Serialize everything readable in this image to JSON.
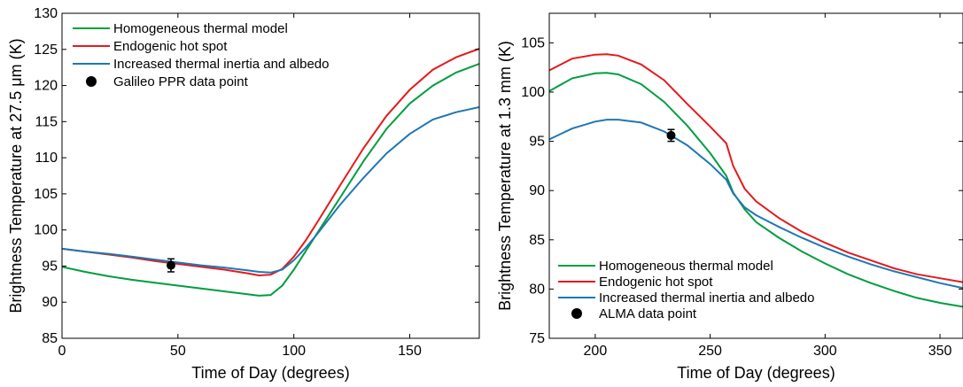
{
  "chart_data": [
    {
      "type": "line",
      "title": "",
      "xlabel": "Time of Day (degrees)",
      "ylabel": "Brightness Temperature at 27.5 μm (K)",
      "xlim": [
        0,
        180
      ],
      "ylim": [
        85,
        130
      ],
      "xticks": [
        0,
        50,
        100,
        150
      ],
      "yticks": [
        85,
        90,
        95,
        100,
        105,
        110,
        115,
        120,
        125,
        130
      ],
      "grid": false,
      "legend_position": "top-left",
      "series": [
        {
          "name": "Homogeneous thermal model",
          "color": "#009E3F",
          "x": [
            0,
            10,
            20,
            30,
            40,
            50,
            60,
            70,
            80,
            85,
            90,
            95,
            100,
            105,
            110,
            120,
            130,
            140,
            150,
            160,
            170,
            180
          ],
          "y": [
            94.9,
            94.2,
            93.6,
            93.1,
            92.7,
            92.3,
            91.9,
            91.5,
            91.1,
            90.9,
            91.0,
            92.3,
            94.5,
            97.0,
            99.5,
            104.5,
            109.5,
            114.0,
            117.5,
            120.0,
            121.8,
            123.0
          ]
        },
        {
          "name": "Endogenic hot spot",
          "color": "#E41A1C",
          "x": [
            0,
            10,
            20,
            30,
            40,
            50,
            60,
            70,
            80,
            85,
            90,
            95,
            100,
            105,
            110,
            120,
            130,
            140,
            150,
            160,
            170,
            180
          ],
          "y": [
            97.4,
            97.0,
            96.6,
            96.2,
            95.7,
            95.3,
            94.9,
            94.5,
            94.0,
            93.7,
            93.8,
            94.6,
            96.3,
            98.5,
            101.0,
            106.2,
            111.3,
            115.8,
            119.4,
            122.2,
            123.9,
            125.1
          ]
        },
        {
          "name": "Increased thermal inertia and albedo",
          "color": "#1F77B4",
          "x": [
            0,
            10,
            20,
            30,
            40,
            50,
            60,
            70,
            80,
            85,
            90,
            95,
            100,
            105,
            110,
            120,
            130,
            140,
            150,
            160,
            170,
            180
          ],
          "y": [
            97.4,
            97.0,
            96.7,
            96.3,
            95.9,
            95.5,
            95.1,
            94.8,
            94.4,
            94.2,
            94.1,
            94.5,
            95.8,
            97.5,
            99.4,
            103.5,
            107.2,
            110.6,
            113.3,
            115.3,
            116.3,
            117.0
          ]
        }
      ],
      "data_points": [
        {
          "name": "Galileo PPR data point",
          "x": 47,
          "y": 95.1,
          "error": 0.9,
          "color": "#000000"
        }
      ]
    },
    {
      "type": "line",
      "title": "",
      "xlabel": "Time of Day (degrees)",
      "ylabel": "Brightness Temperature at 1.3 mm (K)",
      "xlim": [
        180,
        360
      ],
      "ylim": [
        75,
        108
      ],
      "xticks": [
        200,
        250,
        300,
        350
      ],
      "yticks": [
        75,
        80,
        85,
        90,
        95,
        100,
        105
      ],
      "grid": false,
      "legend_position": "bottom-left",
      "series": [
        {
          "name": "Homogeneous thermal model",
          "color": "#009E3F",
          "x": [
            180,
            190,
            200,
            205,
            210,
            220,
            230,
            240,
            250,
            257,
            260,
            265,
            270,
            280,
            290,
            300,
            310,
            320,
            330,
            340,
            350,
            360
          ],
          "y": [
            100.1,
            101.4,
            101.9,
            101.95,
            101.8,
            100.8,
            99.0,
            96.6,
            93.8,
            91.5,
            89.8,
            88.1,
            86.8,
            85.2,
            83.8,
            82.6,
            81.5,
            80.6,
            79.8,
            79.1,
            78.6,
            78.2
          ]
        },
        {
          "name": "Endogenic hot spot",
          "color": "#E41A1C",
          "x": [
            180,
            190,
            200,
            205,
            210,
            220,
            230,
            240,
            250,
            257,
            260,
            265,
            270,
            280,
            290,
            300,
            310,
            320,
            330,
            340,
            350,
            360
          ],
          "y": [
            102.2,
            103.4,
            103.8,
            103.85,
            103.7,
            102.8,
            101.2,
            98.8,
            96.5,
            94.8,
            92.5,
            90.2,
            88.9,
            87.2,
            85.8,
            84.7,
            83.7,
            82.9,
            82.1,
            81.5,
            81.1,
            80.7
          ]
        },
        {
          "name": "Increased thermal inertia and albedo",
          "color": "#1F77B4",
          "x": [
            180,
            190,
            200,
            205,
            210,
            220,
            230,
            240,
            250,
            257,
            260,
            265,
            270,
            280,
            290,
            300,
            310,
            320,
            330,
            340,
            350,
            360
          ],
          "y": [
            95.2,
            96.3,
            97.0,
            97.2,
            97.2,
            96.9,
            96.0,
            94.6,
            92.7,
            91.1,
            89.7,
            88.3,
            87.5,
            86.3,
            85.2,
            84.2,
            83.3,
            82.5,
            81.8,
            81.2,
            80.6,
            80.1
          ]
        }
      ],
      "data_points": [
        {
          "name": "ALMA data point",
          "x": 233,
          "y": 95.6,
          "error": 0.6,
          "color": "#000000"
        }
      ]
    }
  ]
}
